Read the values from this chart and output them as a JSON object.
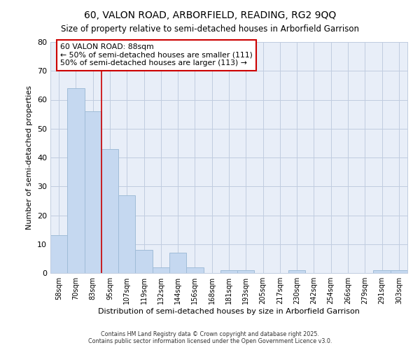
{
  "title": "60, VALON ROAD, ARBORFIELD, READING, RG2 9QQ",
  "subtitle": "Size of property relative to semi-detached houses in Arborfield Garrison",
  "xlabel": "Distribution of semi-detached houses by size in Arborfield Garrison",
  "ylabel": "Number of semi-detached properties",
  "categories": [
    "58sqm",
    "70sqm",
    "83sqm",
    "95sqm",
    "107sqm",
    "119sqm",
    "132sqm",
    "144sqm",
    "156sqm",
    "168sqm",
    "181sqm",
    "193sqm",
    "205sqm",
    "217sqm",
    "230sqm",
    "242sqm",
    "254sqm",
    "266sqm",
    "279sqm",
    "291sqm",
    "303sqm"
  ],
  "values": [
    13,
    64,
    56,
    43,
    27,
    8,
    2,
    7,
    2,
    0,
    1,
    1,
    0,
    0,
    1,
    0,
    0,
    0,
    0,
    1,
    1
  ],
  "bar_color": "#c5d8f0",
  "bar_edge_color": "#a0bcd8",
  "vline_x": 2.5,
  "vline_color": "#cc0000",
  "annotation_title": "60 VALON ROAD: 88sqm",
  "annotation_line1": "← 50% of semi-detached houses are smaller (111)",
  "annotation_line2": "50% of semi-detached houses are larger (113) →",
  "annotation_box_color": "#cc0000",
  "ylim": [
    0,
    80
  ],
  "yticks": [
    0,
    10,
    20,
    30,
    40,
    50,
    60,
    70,
    80
  ],
  "footer1": "Contains HM Land Registry data © Crown copyright and database right 2025.",
  "footer2": "Contains public sector information licensed under the Open Government Licence v3.0.",
  "bg_color": "#ffffff",
  "plot_bg_color": "#e8eef8",
  "grid_color": "#c0cce0"
}
